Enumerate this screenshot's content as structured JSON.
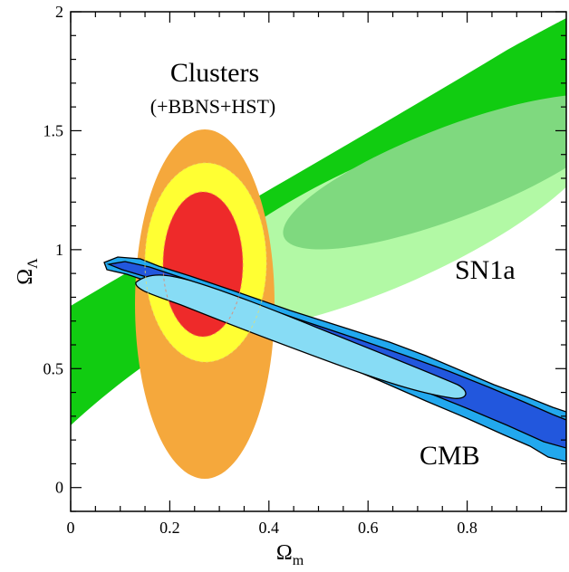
{
  "chart_data": {
    "type": "contour",
    "title": "",
    "xlabel": "Ω",
    "xlabel_sub": "m",
    "ylabel": "Ω",
    "ylabel_sub": "Λ",
    "xlim": [
      0,
      1
    ],
    "ylim": [
      -0.1,
      2
    ],
    "x_ticks": [
      0,
      0.2,
      0.4,
      0.6,
      0.8
    ],
    "x_tick_labels": [
      "0",
      "0.2",
      "0.4",
      "0.6",
      "0.8"
    ],
    "y_ticks": [
      0,
      0.5,
      1,
      1.5,
      2
    ],
    "y_tick_labels": [
      "0",
      "0.5",
      "1",
      "1.5",
      "2"
    ],
    "annotations": {
      "clusters": "Clusters",
      "clusters_sub": "(+BBNS+HST)",
      "sn1a": "SN1a",
      "cmb": "CMB"
    },
    "series": [
      {
        "name": "Clusters",
        "center": [
          0.26,
          0.95
        ],
        "contours": [
          {
            "x_range": [
              0.17,
              0.36
            ],
            "y_range": [
              0.02,
              1.5
            ],
            "color": "#f5a83c"
          },
          {
            "x_range": [
              0.19,
              0.33
            ],
            "y_range": [
              0.3,
              1.35
            ],
            "color": "#ffff33"
          },
          {
            "x_range": [
              0.21,
              0.3
            ],
            "y_range": [
              0.62,
              1.22
            ],
            "color": "#ee2a2a"
          }
        ]
      },
      {
        "name": "SN1a",
        "center": [
          0.62,
          1.2
        ],
        "contours": [
          {
            "x_range": [
              0.0,
              1.0
            ],
            "y_range": [
              0.25,
              2.0
            ],
            "color": "#11cc11"
          },
          {
            "x_range": [
              0.07,
              1.0
            ],
            "y_range": [
              0.45,
              1.8
            ],
            "color": "#b2f9a5"
          },
          {
            "x_range": [
              0.35,
              0.97
            ],
            "y_range": [
              0.93,
              1.68
            ],
            "color": "#7fd97f"
          }
        ]
      },
      {
        "name": "CMB",
        "center": [
          0.55,
          0.5
        ],
        "contours": [
          {
            "x_range": [
              0.08,
              1.0
            ],
            "y_range": [
              0.1,
              0.95
            ],
            "color": "#22a8ee"
          },
          {
            "x_range": [
              0.1,
              1.0
            ],
            "y_range": [
              0.18,
              0.92
            ],
            "color": "#2257dd"
          },
          {
            "x_range": [
              0.14,
              0.82
            ],
            "y_range": [
              0.35,
              0.87
            ],
            "color": "#87dcf5"
          }
        ]
      }
    ]
  },
  "colors": {
    "cluster_outer": "#f5a83c",
    "cluster_mid": "#ffff33",
    "cluster_inner": "#ee2a2a",
    "sn_outer": "#11cc11",
    "sn_mid": "#b2f9a5",
    "sn_inner": "#7fd97f",
    "cmb_outer": "#22a8ee",
    "cmb_mid": "#2257dd",
    "cmb_inner": "#87dcf5"
  }
}
